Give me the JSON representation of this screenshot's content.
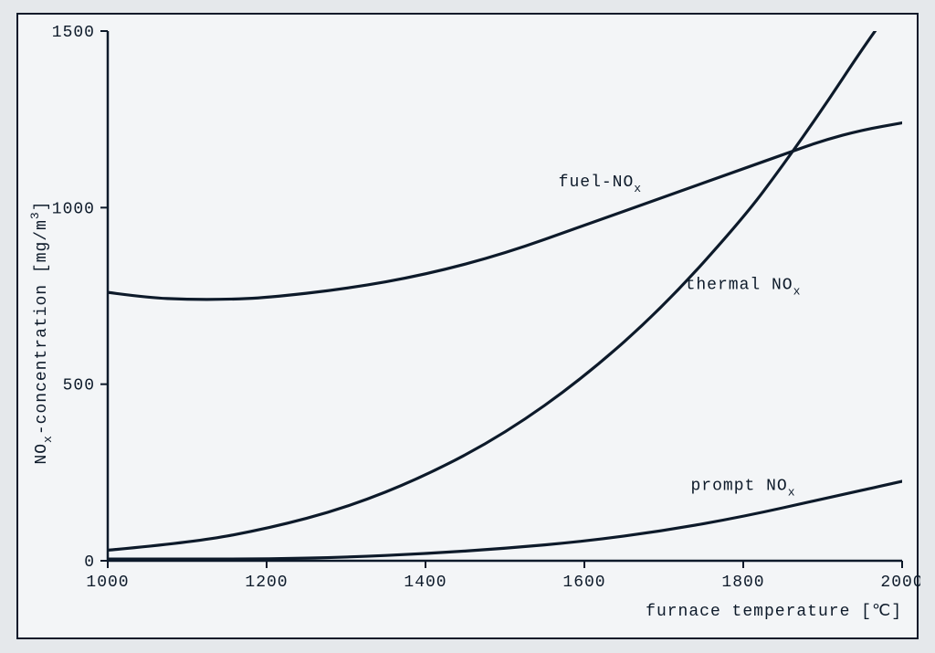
{
  "chart": {
    "type": "line",
    "background_color": "#f3f5f7",
    "page_background": "#e5e8eb",
    "stroke_color": "#0d1a2a",
    "line_width": 3.2,
    "axis_line_width": 2.5,
    "font_family": "Courier New",
    "tick_fontsize": 18,
    "label_fontsize": 18,
    "xlabel": "furnace temperature [℃]",
    "ylabel": "NOₓ-concentration [mg/m³]",
    "xlim": [
      1000,
      2000
    ],
    "ylim": [
      0,
      1500
    ],
    "xticks": [
      1000,
      1200,
      1400,
      1600,
      1800,
      2000
    ],
    "yticks": [
      0,
      500,
      1000,
      1500
    ],
    "tick_length": 8,
    "series": [
      {
        "name": "fuel-NOₓ",
        "label_xy": [
          1620,
          1060
        ],
        "data": [
          [
            1000,
            760
          ],
          [
            1050,
            745
          ],
          [
            1100,
            740
          ],
          [
            1150,
            740
          ],
          [
            1200,
            745
          ],
          [
            1300,
            770
          ],
          [
            1400,
            810
          ],
          [
            1500,
            870
          ],
          [
            1600,
            950
          ],
          [
            1700,
            1030
          ],
          [
            1800,
            1110
          ],
          [
            1850,
            1150
          ],
          [
            1900,
            1190
          ],
          [
            1950,
            1220
          ],
          [
            2000,
            1240
          ]
        ]
      },
      {
        "name": "thermal NOₓ",
        "label_xy": [
          1800,
          770
        ],
        "data": [
          [
            1000,
            30
          ],
          [
            1100,
            50
          ],
          [
            1200,
            90
          ],
          [
            1300,
            150
          ],
          [
            1400,
            240
          ],
          [
            1500,
            360
          ],
          [
            1600,
            520
          ],
          [
            1700,
            720
          ],
          [
            1800,
            970
          ],
          [
            1850,
            1120
          ],
          [
            1900,
            1280
          ],
          [
            1950,
            1450
          ],
          [
            1985,
            1560
          ]
        ]
      },
      {
        "name": "prompt NOₓ",
        "label_xy": [
          1800,
          200
        ],
        "data": [
          [
            1000,
            5
          ],
          [
            1100,
            5
          ],
          [
            1200,
            5
          ],
          [
            1300,
            10
          ],
          [
            1400,
            20
          ],
          [
            1500,
            35
          ],
          [
            1600,
            55
          ],
          [
            1700,
            85
          ],
          [
            1800,
            125
          ],
          [
            1900,
            175
          ],
          [
            2000,
            225
          ]
        ]
      }
    ]
  }
}
